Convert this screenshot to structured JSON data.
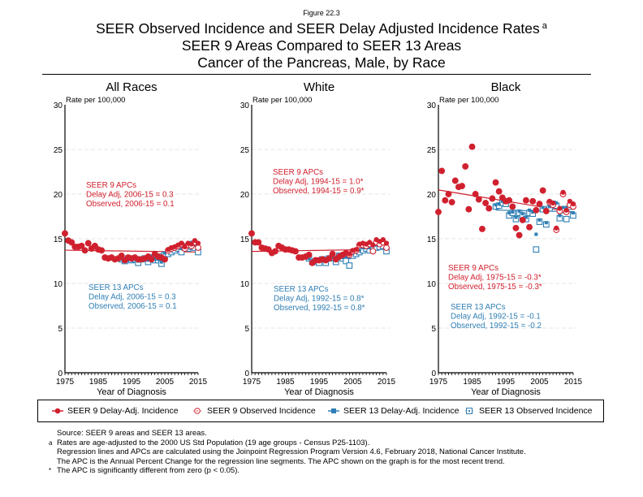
{
  "figure_label": "Figure 22.3",
  "title": {
    "line1": "SEER Observed Incidence and SEER Delay Adjusted Incidence Rates",
    "line1_sup": "a",
    "line2": "SEER 9 Areas Compared to SEER 13 Areas",
    "line3": "Cancer of the Pancreas, Male, by Race"
  },
  "colors": {
    "seer9": "#d0202e",
    "seer13": "#2f7fb5",
    "grid": "#dddddd"
  },
  "legend": [
    {
      "label": "SEER 9 Delay-Adj. Incidence",
      "symbol": "filled-circle-line",
      "series": "seer9"
    },
    {
      "label": "SEER 9 Observed Incidence",
      "symbol": "hollow-circle",
      "series": "seer9"
    },
    {
      "label": "SEER 13 Delay-Adj. Incidence",
      "symbol": "filled-square-line",
      "series": "seer13"
    },
    {
      "label": "SEER 13 Observed Incidence",
      "symbol": "hollow-square",
      "series": "seer13"
    }
  ],
  "notes": {
    "source": "Source: SEER 9 areas and SEER 13 areas.",
    "a_mark": "a",
    "a_line1": "Rates are age-adjusted to the 2000 US Std Population (19 age groups - Census P25-1103).",
    "a_line2": "Regression lines and APCs are calculated using the Joinpoint Regression Program Version 4.6, February 2018, National Cancer Institute.",
    "a_line3": "The APC is the Annual Percent Change for the regression line segments. The APC shown on the graph is for the most recent trend.",
    "star_mark": "*",
    "star_line": "The APC is significantly different from zero (p < 0.05)."
  },
  "chart_data": [
    {
      "type": "scatter",
      "title": "All Races",
      "xlabel": "Year of Diagnosis",
      "ylabel": "Rate per 100,000",
      "xlim": [
        1975,
        2015
      ],
      "ylim": [
        0,
        30
      ],
      "xticks": [
        "1975",
        "1985",
        "1995",
        "2005",
        "2015"
      ],
      "yticks": [
        "0",
        "5",
        "10",
        "15",
        "20",
        "25",
        "30"
      ],
      "grid": true,
      "apc_seer9": {
        "heading": "SEER 9 APCs",
        "delay": "Delay Adj, 2006-15 = 0.3",
        "observed": "Observed, 2006-15 = 0.1"
      },
      "apc_seer13": {
        "heading": "SEER 13 APCs",
        "delay": "Delay Adj, 2006-15 = 0.3",
        "observed": "Observed, 2006-15 = 0.1"
      },
      "series": [
        {
          "name": "SEER 9 Delay-Adj. Incidence",
          "x_start": 1975,
          "values": [
            15.6,
            14.8,
            14.6,
            14.1,
            14.1,
            14.2,
            13.7,
            14.5,
            13.9,
            14.2,
            13.8,
            13.7,
            12.9,
            12.8,
            12.9,
            12.7,
            12.8,
            13.1,
            12.6,
            12.9,
            12.8,
            12.9,
            12.7,
            12.7,
            12.8,
            13.0,
            12.7,
            13.3,
            13.0,
            12.9,
            12.7,
            13.8,
            14.0,
            14.1,
            14.3,
            14.5,
            14.1,
            14.5,
            14.4,
            14.8,
            14.5
          ]
        },
        {
          "name": "SEER 9 Observed Incidence",
          "x_start": 1975,
          "values": [
            15.6,
            14.8,
            14.6,
            14.1,
            14.1,
            14.2,
            13.7,
            14.5,
            13.9,
            14.2,
            13.8,
            13.7,
            12.9,
            12.8,
            12.9,
            12.7,
            12.8,
            13.1,
            12.6,
            12.9,
            12.8,
            12.9,
            12.7,
            12.7,
            12.8,
            13.0,
            12.7,
            13.3,
            13.0,
            12.9,
            12.7,
            13.7,
            13.9,
            14.0,
            14.2,
            14.4,
            13.9,
            14.3,
            14.2,
            14.6,
            14.0
          ]
        },
        {
          "name": "SEER 13 Delay-Adj. Incidence",
          "x_start": 1992,
          "values": [
            12.7,
            12.5,
            12.8,
            12.6,
            12.7,
            12.5,
            12.7,
            12.8,
            12.6,
            13.0,
            12.7,
            12.7,
            12.4,
            13.4,
            13.6,
            13.8,
            14.0,
            14.2,
            13.9,
            14.3,
            14.2,
            14.6,
            14.3,
            14.2
          ]
        },
        {
          "name": "SEER 13 Observed Incidence",
          "x_start": 1992,
          "values": [
            12.7,
            12.5,
            12.8,
            12.6,
            12.7,
            12.3,
            12.7,
            12.8,
            12.4,
            12.9,
            12.6,
            12.6,
            12.2,
            13.2,
            13.3,
            13.5,
            13.7,
            13.9,
            13.5,
            14.0,
            13.9,
            14.1,
            14.0,
            13.5
          ]
        }
      ]
    },
    {
      "type": "scatter",
      "title": "White",
      "xlabel": "Year of Diagnosis",
      "ylabel": "Rate per 100,000",
      "xlim": [
        1975,
        2015
      ],
      "ylim": [
        0,
        30
      ],
      "xticks": [
        "1975",
        "1985",
        "1995",
        "2005",
        "2015"
      ],
      "yticks": [
        "0",
        "5",
        "10",
        "15",
        "20",
        "25",
        "30"
      ],
      "grid": true,
      "apc_seer9": {
        "heading": "SEER 9 APCs",
        "delay": "Delay Adj, 1994-15 = 1.0*",
        "observed": "Observed, 1994-15 = 0.9*"
      },
      "apc_seer13": {
        "heading": "SEER 13 APCs",
        "delay": "Delay Adj, 1992-15 = 0.8*",
        "observed": "Observed, 1992-15 = 0.8*"
      },
      "series": [
        {
          "name": "SEER 9 Delay-Adj. Incidence",
          "x_start": 1975,
          "values": [
            15.6,
            14.6,
            14.6,
            14.0,
            13.9,
            13.8,
            13.4,
            13.6,
            14.2,
            14.0,
            13.8,
            13.8,
            13.7,
            13.6,
            12.9,
            12.9,
            13.0,
            13.2,
            12.3,
            12.6,
            12.6,
            12.7,
            12.6,
            12.8,
            13.3,
            12.7,
            13.0,
            13.2,
            13.4,
            13.3,
            13.7,
            13.8,
            14.4,
            14.5,
            14.4,
            14.6,
            14.3,
            14.9,
            14.7,
            14.9,
            14.5
          ]
        },
        {
          "name": "SEER 9 Observed Incidence",
          "x_start": 1975,
          "values": [
            15.6,
            14.6,
            14.6,
            14.0,
            13.9,
            13.8,
            13.4,
            13.6,
            14.2,
            14.0,
            13.8,
            13.8,
            13.7,
            13.6,
            12.9,
            12.9,
            13.0,
            13.2,
            12.3,
            12.6,
            12.6,
            12.7,
            12.6,
            12.8,
            13.3,
            12.7,
            13.0,
            13.2,
            13.4,
            13.2,
            13.6,
            13.7,
            14.3,
            14.3,
            14.2,
            14.4,
            13.6,
            14.6,
            14.4,
            14.6,
            14.0
          ]
        },
        {
          "name": "SEER 13 Delay-Adj. Incidence",
          "x_start": 1992,
          "values": [
            12.8,
            12.4,
            12.5,
            12.5,
            12.7,
            12.5,
            12.8,
            12.9,
            12.8,
            13.2,
            12.9,
            13.0,
            12.9,
            13.4,
            13.5,
            13.7,
            14.0,
            14.0,
            14.0,
            14.2,
            14.3,
            14.4,
            14.5,
            14.3
          ]
        },
        {
          "name": "SEER 13 Observed Incidence",
          "x_start": 1992,
          "values": [
            12.8,
            12.4,
            12.5,
            12.3,
            12.7,
            12.3,
            12.8,
            12.9,
            12.4,
            13.1,
            12.8,
            12.5,
            12.0,
            13.1,
            13.3,
            13.5,
            13.7,
            13.9,
            13.7,
            14.0,
            14.0,
            14.1,
            14.2,
            13.6
          ]
        }
      ]
    },
    {
      "type": "scatter",
      "title": "Black",
      "xlabel": "Year of Diagnosis",
      "ylabel": "Rate per 100,000",
      "xlim": [
        1975,
        2015
      ],
      "ylim": [
        0,
        30
      ],
      "xticks": [
        "1975",
        "1985",
        "1995",
        "2005",
        "2015"
      ],
      "yticks": [
        "0",
        "5",
        "10",
        "15",
        "20",
        "25",
        "30"
      ],
      "grid": true,
      "apc_seer9": {
        "heading": "SEER 9 APCs",
        "delay": "Delay Adj, 1975-15 = -0.3*",
        "observed": "Observed, 1975-15 = -0.3*"
      },
      "apc_seer13": {
        "heading": "SEER 13 APCs",
        "delay": "Delay Adj, 1992-15 = -0.1",
        "observed": "Observed, 1992-15 = -0.2"
      },
      "series": [
        {
          "name": "SEER 9 Delay-Adj. Incidence",
          "x_start": 1975,
          "values": [
            18.0,
            22.6,
            19.3,
            20.0,
            19.1,
            21.5,
            20.8,
            20.9,
            23.1,
            18.3,
            25.3,
            20.0,
            19.4,
            16.1,
            19.0,
            18.4,
            19.5,
            21.3,
            20.3,
            19.6,
            19.2,
            19.3,
            18.6,
            16.2,
            15.4,
            17.1,
            19.3,
            16.3,
            19.2,
            18.2,
            18.9,
            20.4,
            18.1,
            19.2,
            19.0,
            16.2,
            18.4,
            20.2,
            18.2,
            19.2,
            18.9
          ]
        },
        {
          "name": "SEER 9 Observed Incidence",
          "x_start": 1975,
          "values": [
            18.0,
            22.6,
            19.3,
            20.0,
            19.1,
            21.5,
            20.8,
            20.9,
            23.1,
            18.3,
            25.3,
            20.0,
            19.4,
            16.1,
            19.0,
            18.4,
            19.5,
            21.3,
            20.3,
            19.6,
            19.2,
            19.3,
            18.6,
            16.2,
            15.4,
            17.1,
            19.3,
            16.3,
            19.2,
            18.2,
            18.9,
            20.4,
            18.1,
            19.1,
            18.8,
            16.0,
            18.1,
            20.0,
            18.0,
            18.8,
            18.6
          ]
        },
        {
          "name": "SEER 13 Delay-Adj. Incidence",
          "x_start": 1992,
          "values": [
            18.8,
            18.9,
            19.2,
            19.1,
            17.9,
            18.0,
            17.4,
            18.1,
            17.8,
            17.4,
            18.2,
            18.0,
            15.5,
            17.1,
            18.5,
            16.8,
            18.6,
            19.1,
            19.0,
            17.6,
            18.5,
            18.5,
            19.0,
            17.9
          ]
        },
        {
          "name": "SEER 13 Observed Incidence",
          "x_start": 1992,
          "values": [
            18.6,
            18.7,
            19.0,
            18.9,
            17.6,
            17.9,
            17.2,
            17.9,
            17.6,
            17.2,
            17.9,
            17.8,
            13.8,
            16.9,
            18.3,
            16.6,
            18.4,
            18.9,
            18.7,
            17.3,
            18.2,
            17.2,
            18.6,
            17.6
          ]
        }
      ]
    }
  ]
}
